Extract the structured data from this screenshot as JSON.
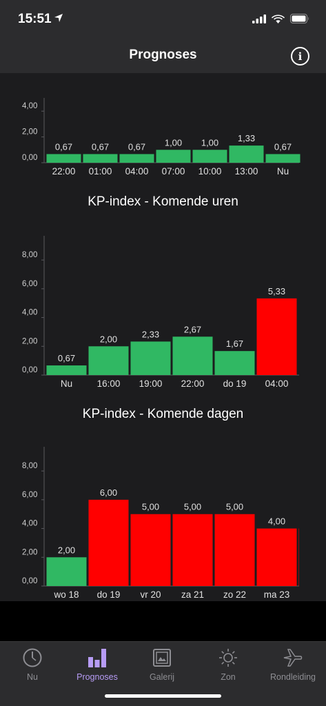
{
  "status": {
    "time": "15:51"
  },
  "nav": {
    "title": "Prognoses"
  },
  "charts": {
    "top": {
      "type": "bar",
      "categories": [
        "22:00",
        "01:00",
        "04:00",
        "07:00",
        "10:00",
        "13:00",
        "Nu"
      ],
      "values": [
        0.67,
        0.67,
        0.67,
        1.0,
        1.0,
        1.33,
        0.67
      ],
      "value_labels": [
        "0,67",
        "0,67",
        "0,67",
        "1,00",
        "1,00",
        "1,33",
        "0,67"
      ],
      "colors": [
        "#30b863",
        "#30b863",
        "#30b863",
        "#30b863",
        "#30b863",
        "#30b863",
        "#30b863"
      ],
      "yticks": [
        0,
        2,
        4
      ],
      "ytick_labels": [
        "0,00",
        "2,00",
        "4,00"
      ],
      "ylim": [
        0,
        4.6
      ]
    },
    "hours": {
      "title": "KP-index - Komende uren",
      "type": "bar",
      "categories": [
        "Nu",
        "16:00",
        "19:00",
        "22:00",
        "do 19",
        "04:00"
      ],
      "values": [
        0.67,
        2.0,
        2.33,
        2.67,
        1.67,
        5.33
      ],
      "value_labels": [
        "0,67",
        "2,00",
        "2,33",
        "2,67",
        "1,67",
        "5,33"
      ],
      "colors": [
        "#30b863",
        "#30b863",
        "#30b863",
        "#30b863",
        "#30b863",
        "#ff0000"
      ],
      "yticks": [
        0,
        2,
        4,
        6,
        8
      ],
      "ytick_labels": [
        "0,00",
        "2,00",
        "4,00",
        "6,00",
        "8,00"
      ],
      "ylim": [
        0,
        9.3
      ]
    },
    "days": {
      "title": "KP-index - Komende dagen",
      "type": "bar",
      "categories": [
        "wo 18",
        "do 19",
        "vr 20",
        "za 21",
        "zo 22",
        "ma 23",
        ""
      ],
      "values": [
        2.0,
        6.0,
        5.0,
        5.0,
        5.0,
        4.0,
        4.0
      ],
      "value_labels": [
        "2,00",
        "6,00",
        "5,00",
        "5,00",
        "5,00",
        "4,00",
        ""
      ],
      "colors": [
        "#30b863",
        "#ff0000",
        "#ff0000",
        "#ff0000",
        "#ff0000",
        "#ff0000",
        "#ff0000"
      ],
      "yticks": [
        0,
        2,
        4,
        6,
        8
      ],
      "ytick_labels": [
        "0,00",
        "2,00",
        "4,00",
        "6,00",
        "8,00"
      ],
      "ylim": [
        0,
        9.3
      ]
    }
  },
  "tabs": [
    {
      "label": "Nu",
      "icon": "clock-icon"
    },
    {
      "label": "Prognoses",
      "icon": "bar-chart-icon",
      "active": true
    },
    {
      "label": "Galerij",
      "icon": "gallery-icon"
    },
    {
      "label": "Zon",
      "icon": "sun-icon"
    },
    {
      "label": "Rondleiding",
      "icon": "airplane-icon"
    }
  ]
}
